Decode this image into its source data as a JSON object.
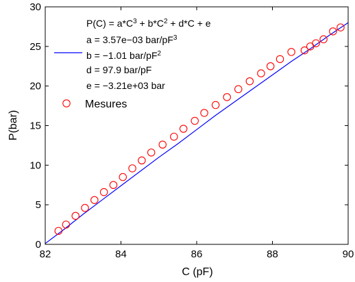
{
  "chart_data": {
    "type": "scatter",
    "xlabel": "C (pF)",
    "ylabel": "P(bar)",
    "xlim": [
      82,
      90
    ],
    "ylim": [
      0,
      30
    ],
    "xticks": [
      82,
      84,
      86,
      88,
      90
    ],
    "yticks": [
      0,
      5,
      10,
      15,
      20,
      25,
      30
    ],
    "grid": false,
    "legend_placement": "top-left",
    "fit": {
      "name": "P(C) = a*C^3 + b*C^2 + d*C + e",
      "color": "#0000ff",
      "params_text": [
        "a = 3.57e−03 bar/pF^3",
        "b = −1.01 bar/pF^2",
        "d = 97.9 bar/pF",
        "e = −3.21e+03 bar"
      ],
      "x": [
        82.0,
        82.5,
        83.0,
        83.5,
        84.0,
        84.5,
        85.0,
        85.5,
        86.0,
        86.5,
        87.0,
        87.5,
        88.0,
        88.5,
        89.0,
        89.5,
        90.0
      ],
      "y": [
        0.1,
        1.9,
        3.8,
        5.6,
        7.4,
        9.2,
        11.0,
        12.7,
        14.5,
        16.3,
        18.0,
        19.7,
        21.4,
        23.1,
        24.7,
        26.4,
        28.0
      ]
    },
    "series": [
      {
        "name": "Mesures",
        "color": "#ff0000",
        "marker": "circle",
        "x": [
          82.35,
          82.55,
          82.8,
          83.05,
          83.3,
          83.55,
          83.8,
          84.05,
          84.3,
          84.55,
          84.8,
          85.1,
          85.4,
          85.65,
          85.95,
          86.2,
          86.5,
          86.8,
          87.1,
          87.4,
          87.7,
          87.95,
          88.2,
          88.5,
          88.85,
          89.0,
          89.15,
          89.35,
          89.6,
          89.8
        ],
        "y": [
          1.7,
          2.5,
          3.6,
          4.6,
          5.6,
          6.6,
          7.5,
          8.5,
          9.6,
          10.6,
          11.6,
          12.6,
          13.6,
          14.6,
          15.6,
          16.6,
          17.6,
          18.6,
          19.6,
          20.6,
          21.6,
          22.5,
          23.4,
          24.3,
          24.5,
          25.0,
          25.4,
          25.9,
          26.9,
          27.4
        ]
      }
    ]
  }
}
